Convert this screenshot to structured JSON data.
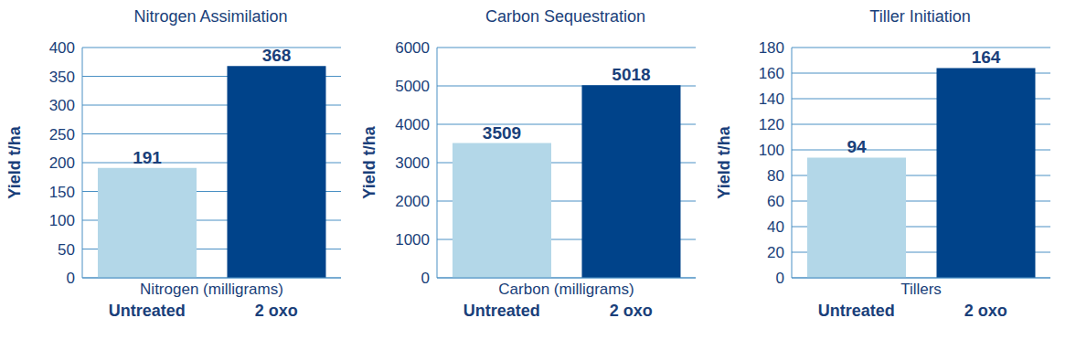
{
  "chart_data": [
    {
      "type": "bar",
      "title": "Nitrogen Assimilation",
      "x_label": "Nitrogen (milligrams)",
      "y_label": "Yield t/ha",
      "categories": [
        "Untreated",
        "2 oxo"
      ],
      "values": [
        191,
        368
      ],
      "colors": [
        "#b3d7e8",
        "#00438a"
      ],
      "ylim": [
        0,
        400
      ],
      "yticks": [
        0,
        50,
        100,
        150,
        200,
        250,
        300,
        350,
        400
      ],
      "grid": true,
      "data_labels": true
    },
    {
      "type": "bar",
      "title": "Carbon Sequestration",
      "x_label": "Carbon (milligrams)",
      "y_label": "Yield t/ha",
      "categories": [
        "Untreated",
        "2 oxo"
      ],
      "values": [
        3509,
        5018
      ],
      "colors": [
        "#b3d7e8",
        "#00438a"
      ],
      "ylim": [
        0,
        6000
      ],
      "yticks": [
        0,
        1000,
        2000,
        3000,
        4000,
        5000,
        6000
      ],
      "grid": true,
      "data_labels": true
    },
    {
      "type": "bar",
      "title": "Tiller Initiation",
      "x_label": "Tillers",
      "y_label": "Yield t/ha",
      "categories": [
        "Untreated",
        "2 oxo"
      ],
      "values": [
        94,
        164
      ],
      "colors": [
        "#b3d7e8",
        "#00438a"
      ],
      "ylim": [
        0,
        180
      ],
      "yticks": [
        0,
        20,
        40,
        60,
        80,
        100,
        120,
        140,
        160,
        180
      ],
      "grid": true,
      "data_labels": true
    }
  ]
}
